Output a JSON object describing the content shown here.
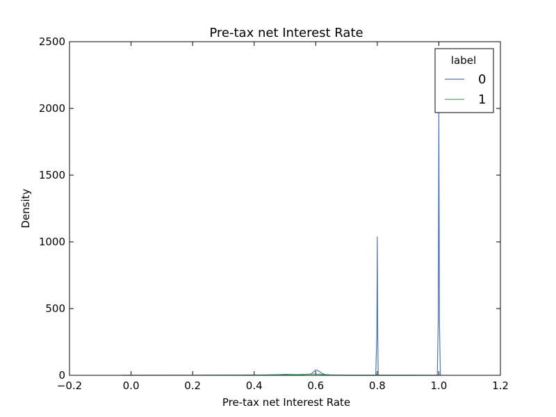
{
  "chart_data": {
    "type": "line",
    "title": "Pre-tax net Interest Rate",
    "xlabel": "Pre-tax net Interest Rate",
    "ylabel": "Density",
    "xlim": [
      -0.2,
      1.2
    ],
    "ylim": [
      0,
      2500
    ],
    "x_ticks": [
      -0.2,
      0.0,
      0.2,
      0.4,
      0.6,
      0.8,
      1.0,
      1.2
    ],
    "x_tick_labels": [
      "−0.2",
      "0.0",
      "0.2",
      "0.4",
      "0.6",
      "0.8",
      "1.0",
      "1.2"
    ],
    "y_ticks": [
      0,
      500,
      1000,
      1500,
      2000,
      2500
    ],
    "y_tick_labels": [
      "0",
      "500",
      "1000",
      "1500",
      "2000",
      "2500"
    ],
    "grid": false,
    "legend": {
      "title": "label",
      "placement": "top-right"
    },
    "series": [
      {
        "name": "0",
        "color": "#4c72b0",
        "points": [
          [
            0.37,
            0
          ],
          [
            0.44,
            2
          ],
          [
            0.48,
            5
          ],
          [
            0.5,
            7
          ],
          [
            0.52,
            6
          ],
          [
            0.55,
            5
          ],
          [
            0.57,
            8
          ],
          [
            0.585,
            10
          ],
          [
            0.595,
            30
          ],
          [
            0.6,
            40
          ],
          [
            0.605,
            38
          ],
          [
            0.612,
            28
          ],
          [
            0.62,
            15
          ],
          [
            0.63,
            6
          ],
          [
            0.65,
            2
          ],
          [
            0.7,
            0
          ],
          [
            0.795,
            0
          ],
          [
            0.7985,
            300
          ],
          [
            0.8,
            1040
          ],
          [
            0.8015,
            300
          ],
          [
            0.803,
            0
          ],
          [
            0.92,
            0
          ],
          [
            0.995,
            0
          ],
          [
            0.998,
            400
          ],
          [
            1.0,
            2000
          ],
          [
            1.002,
            400
          ],
          [
            1.005,
            0
          ]
        ]
      },
      {
        "name": "1",
        "color": "#55a868",
        "points": [
          [
            -0.03,
            0
          ],
          [
            0.2,
            1
          ],
          [
            0.4,
            2
          ],
          [
            0.5,
            4
          ],
          [
            0.55,
            6
          ],
          [
            0.58,
            8
          ],
          [
            0.6,
            10
          ],
          [
            0.62,
            6
          ],
          [
            0.65,
            2
          ],
          [
            0.7,
            0
          ],
          [
            0.795,
            0
          ],
          [
            0.8,
            15
          ],
          [
            0.805,
            0
          ],
          [
            0.93,
            0
          ]
        ]
      }
    ]
  }
}
